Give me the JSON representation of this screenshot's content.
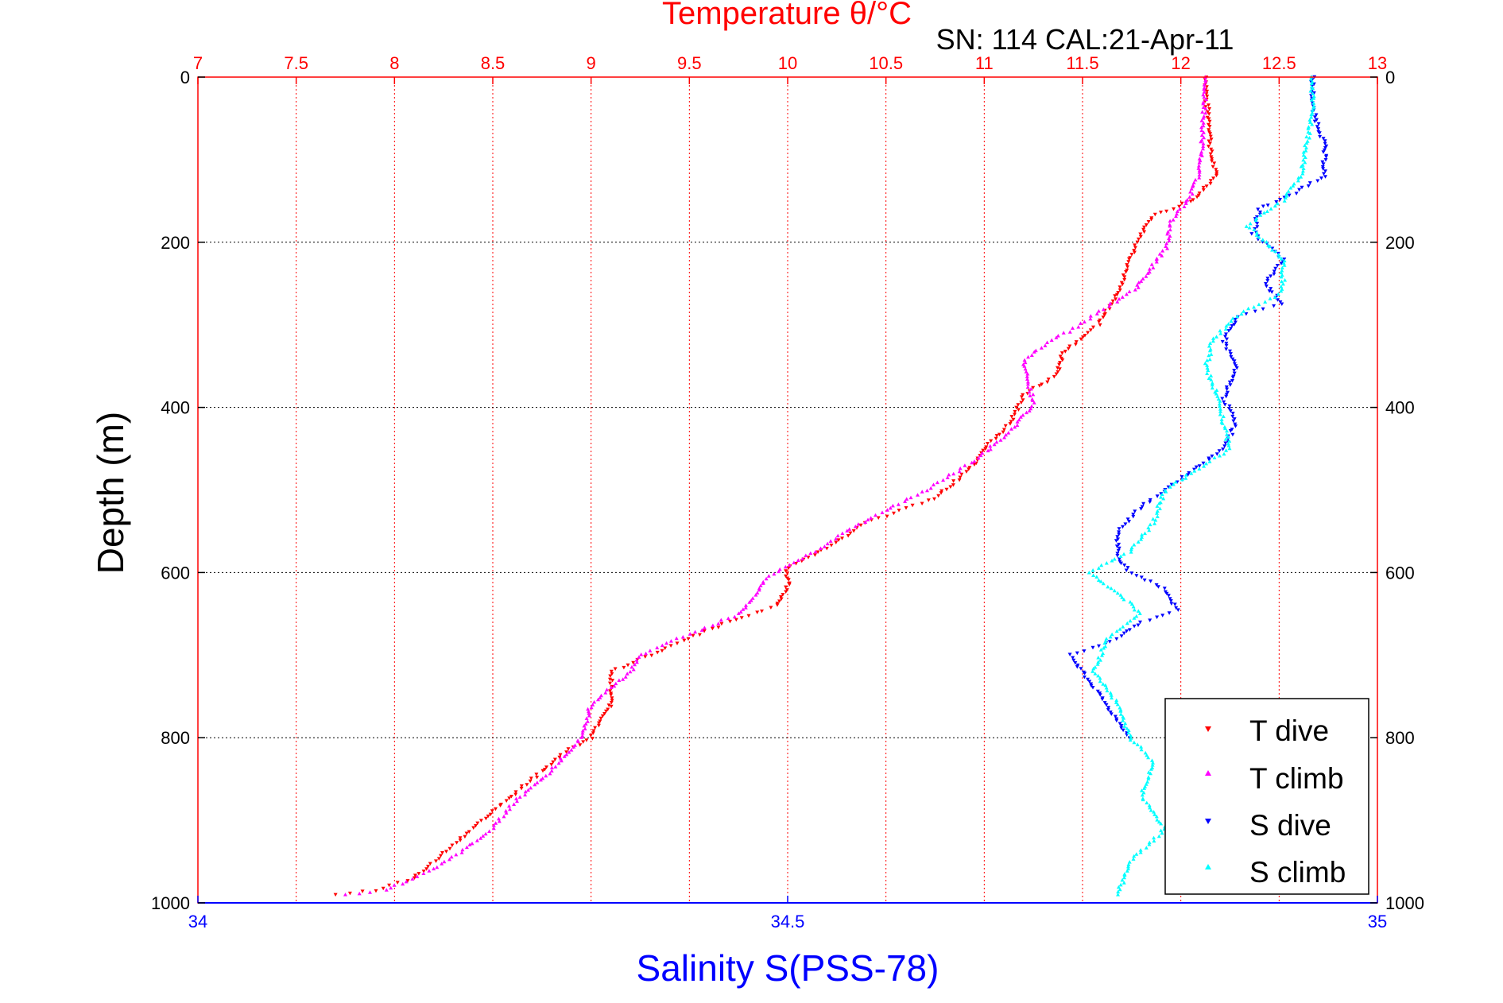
{
  "chart_data": {
    "type": "scatter",
    "title": "Temperature θ/°C",
    "subtitle": "SN: 114  CAL:21-Apr-11",
    "ylabel": "Depth (m)",
    "xlabel_bottom": "Salinity S(PSS-78)",
    "xlabel_top": "Temperature θ/°C",
    "y_reversed": true,
    "ylim": [
      0,
      1000
    ],
    "yticks": [
      0,
      200,
      400,
      600,
      800,
      1000
    ],
    "xlim_top": [
      7,
      13
    ],
    "xticks_top": [
      7,
      7.5,
      8,
      8.5,
      9,
      9.5,
      10,
      10.5,
      11,
      11.5,
      12,
      12.5,
      13
    ],
    "xlim_bottom": [
      34,
      35
    ],
    "xticks_bottom": [
      34,
      34.5,
      35
    ],
    "grid": true,
    "legend_position": "bottom-right",
    "colors": {
      "temp_axis": "#ff0000",
      "sal_axis": "#0000ff",
      "grid_v": "#ff0000",
      "grid_h": "#000000"
    },
    "series": [
      {
        "name": "T dive",
        "axis": "top",
        "color": "#ff0000",
        "marker": "triangle-down",
        "points": [
          [
            12.13,
            0
          ],
          [
            12.13,
            30
          ],
          [
            12.15,
            60
          ],
          [
            12.15,
            90
          ],
          [
            12.18,
            120
          ],
          [
            12.07,
            148
          ],
          [
            11.85,
            170
          ],
          [
            11.78,
            200
          ],
          [
            11.73,
            230
          ],
          [
            11.68,
            260
          ],
          [
            11.58,
            300
          ],
          [
            11.5,
            315
          ],
          [
            11.4,
            335
          ],
          [
            11.37,
            360
          ],
          [
            11.2,
            385
          ],
          [
            11.13,
            420
          ],
          [
            11.0,
            450
          ],
          [
            10.95,
            470
          ],
          [
            10.75,
            510
          ],
          [
            10.4,
            540
          ],
          [
            10.2,
            570
          ],
          [
            10.0,
            595
          ],
          [
            10.0,
            615
          ],
          [
            9.95,
            640
          ],
          [
            9.7,
            660
          ],
          [
            9.5,
            680
          ],
          [
            9.3,
            700
          ],
          [
            9.1,
            720
          ],
          [
            9.1,
            760
          ],
          [
            9.0,
            800
          ],
          [
            8.85,
            820
          ],
          [
            8.7,
            850
          ],
          [
            8.55,
            880
          ],
          [
            8.4,
            910
          ],
          [
            8.25,
            940
          ],
          [
            8.1,
            970
          ],
          [
            7.9,
            985
          ],
          [
            7.7,
            990
          ]
        ]
      },
      {
        "name": "T climb",
        "axis": "top",
        "color": "#ff00ff",
        "marker": "triangle-up",
        "points": [
          [
            12.12,
            0
          ],
          [
            12.12,
            30
          ],
          [
            12.11,
            70
          ],
          [
            12.1,
            110
          ],
          [
            12.05,
            145
          ],
          [
            11.95,
            175
          ],
          [
            11.93,
            205
          ],
          [
            11.85,
            230
          ],
          [
            11.78,
            255
          ],
          [
            11.65,
            275
          ],
          [
            11.45,
            305
          ],
          [
            11.3,
            325
          ],
          [
            11.2,
            345
          ],
          [
            11.23,
            375
          ],
          [
            11.25,
            395
          ],
          [
            11.13,
            430
          ],
          [
            10.95,
            465
          ],
          [
            10.7,
            500
          ],
          [
            10.5,
            525
          ],
          [
            10.3,
            550
          ],
          [
            10.1,
            580
          ],
          [
            9.9,
            605
          ],
          [
            9.85,
            625
          ],
          [
            9.75,
            650
          ],
          [
            9.5,
            675
          ],
          [
            9.25,
            700
          ],
          [
            9.2,
            720
          ],
          [
            9.0,
            760
          ],
          [
            8.95,
            800
          ],
          [
            8.8,
            840
          ],
          [
            8.6,
            880
          ],
          [
            8.5,
            910
          ],
          [
            8.3,
            945
          ],
          [
            8.15,
            965
          ],
          [
            7.95,
            985
          ],
          [
            7.75,
            990
          ]
        ]
      },
      {
        "name": "S dive",
        "axis": "bottom",
        "color": "#0000ff",
        "marker": "triangle-down",
        "points": [
          [
            34.945,
            0
          ],
          [
            34.945,
            40
          ],
          [
            34.955,
            80
          ],
          [
            34.955,
            120
          ],
          [
            34.93,
            140
          ],
          [
            34.9,
            160
          ],
          [
            34.895,
            190
          ],
          [
            34.92,
            220
          ],
          [
            34.905,
            250
          ],
          [
            34.92,
            275
          ],
          [
            34.88,
            290
          ],
          [
            34.87,
            320
          ],
          [
            34.88,
            350
          ],
          [
            34.87,
            390
          ],
          [
            34.88,
            420
          ],
          [
            34.87,
            450
          ],
          [
            34.83,
            490
          ],
          [
            34.8,
            520
          ],
          [
            34.78,
            550
          ],
          [
            34.78,
            580
          ],
          [
            34.79,
            600
          ],
          [
            34.82,
            620
          ],
          [
            34.83,
            645
          ],
          [
            34.8,
            660
          ],
          [
            34.78,
            680
          ],
          [
            34.74,
            700
          ],
          [
            34.75,
            720
          ],
          [
            34.77,
            760
          ],
          [
            34.79,
            800
          ]
        ]
      },
      {
        "name": "S climb",
        "axis": "bottom",
        "color": "#00ffff",
        "marker": "triangle-up",
        "points": [
          [
            34.945,
            0
          ],
          [
            34.945,
            40
          ],
          [
            34.94,
            80
          ],
          [
            34.935,
            120
          ],
          [
            34.92,
            150
          ],
          [
            34.89,
            180
          ],
          [
            34.92,
            220
          ],
          [
            34.92,
            260
          ],
          [
            34.88,
            290
          ],
          [
            34.86,
            320
          ],
          [
            34.855,
            350
          ],
          [
            34.865,
            390
          ],
          [
            34.87,
            420
          ],
          [
            34.875,
            450
          ],
          [
            34.82,
            500
          ],
          [
            34.81,
            540
          ],
          [
            34.79,
            575
          ],
          [
            34.755,
            600
          ],
          [
            34.78,
            625
          ],
          [
            34.8,
            650
          ],
          [
            34.77,
            680
          ],
          [
            34.76,
            720
          ],
          [
            34.78,
            760
          ],
          [
            34.79,
            800
          ],
          [
            34.81,
            830
          ],
          [
            34.8,
            870
          ],
          [
            34.82,
            910
          ],
          [
            34.79,
            950
          ],
          [
            34.78,
            990
          ]
        ]
      }
    ]
  }
}
